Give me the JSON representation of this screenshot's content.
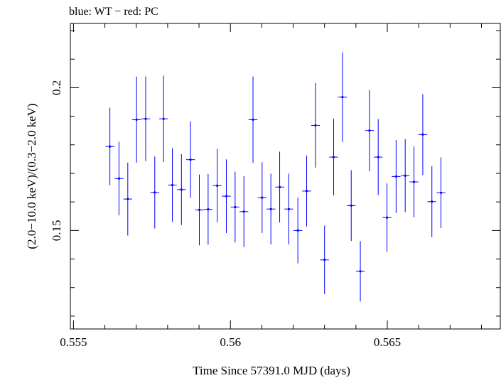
{
  "chart_data": {
    "type": "scatter",
    "title": "blue: WT − red: PC",
    "xlabel": "Time Since 57391.0 MJD (days)",
    "ylabel": "(2.0−10.0 keV)/(0.3−2.0 keV)",
    "xlim": [
      0.5549,
      0.5686
    ],
    "ylim": [
      0.1155,
      0.2225
    ],
    "xticks": [
      {
        "value": 0.555,
        "label": "0.555"
      },
      {
        "value": 0.56,
        "label": "0.56"
      },
      {
        "value": 0.565,
        "label": "0.565"
      }
    ],
    "yticks": [
      {
        "value": 0.15,
        "label": "0.15"
      },
      {
        "value": 0.2,
        "label": "0.2"
      }
    ],
    "grid": false,
    "series": [
      {
        "color": "#0000ff",
        "xerr": 0.00014,
        "points": [
          {
            "x": 0.55616,
            "y": 0.1794,
            "yerr": 0.0136
          },
          {
            "x": 0.55645,
            "y": 0.1682,
            "yerr": 0.0129
          },
          {
            "x": 0.55673,
            "y": 0.161,
            "yerr": 0.0128
          },
          {
            "x": 0.55701,
            "y": 0.1888,
            "yerr": 0.0151
          },
          {
            "x": 0.5573,
            "y": 0.1891,
            "yerr": 0.0148
          },
          {
            "x": 0.55759,
            "y": 0.1633,
            "yerr": 0.0126
          },
          {
            "x": 0.55787,
            "y": 0.1891,
            "yerr": 0.0151
          },
          {
            "x": 0.55815,
            "y": 0.1659,
            "yerr": 0.0129
          },
          {
            "x": 0.55844,
            "y": 0.1643,
            "yerr": 0.0124
          },
          {
            "x": 0.55873,
            "y": 0.1748,
            "yerr": 0.0134
          },
          {
            "x": 0.55901,
            "y": 0.1572,
            "yerr": 0.0124
          },
          {
            "x": 0.55929,
            "y": 0.1574,
            "yerr": 0.0124
          },
          {
            "x": 0.55958,
            "y": 0.1657,
            "yerr": 0.0129
          },
          {
            "x": 0.55987,
            "y": 0.162,
            "yerr": 0.0129
          },
          {
            "x": 0.56015,
            "y": 0.1582,
            "yerr": 0.0124
          },
          {
            "x": 0.56043,
            "y": 0.1566,
            "yerr": 0.0124
          },
          {
            "x": 0.56072,
            "y": 0.1888,
            "yerr": 0.0151
          },
          {
            "x": 0.56101,
            "y": 0.1615,
            "yerr": 0.0124
          },
          {
            "x": 0.56129,
            "y": 0.1575,
            "yerr": 0.0124
          },
          {
            "x": 0.56157,
            "y": 0.1652,
            "yerr": 0.0124
          },
          {
            "x": 0.56186,
            "y": 0.1575,
            "yerr": 0.0124
          },
          {
            "x": 0.56215,
            "y": 0.15,
            "yerr": 0.0115
          },
          {
            "x": 0.56243,
            "y": 0.1638,
            "yerr": 0.0124
          },
          {
            "x": 0.56271,
            "y": 0.1868,
            "yerr": 0.0148
          },
          {
            "x": 0.563,
            "y": 0.1397,
            "yerr": 0.012
          },
          {
            "x": 0.56329,
            "y": 0.1757,
            "yerr": 0.0134
          },
          {
            "x": 0.56357,
            "y": 0.1967,
            "yerr": 0.0157
          },
          {
            "x": 0.56385,
            "y": 0.1587,
            "yerr": 0.0124
          },
          {
            "x": 0.56414,
            "y": 0.1357,
            "yerr": 0.0106
          },
          {
            "x": 0.56443,
            "y": 0.185,
            "yerr": 0.0142
          },
          {
            "x": 0.56471,
            "y": 0.1757,
            "yerr": 0.0133
          },
          {
            "x": 0.56499,
            "y": 0.1545,
            "yerr": 0.012
          },
          {
            "x": 0.56528,
            "y": 0.1689,
            "yerr": 0.0128
          },
          {
            "x": 0.56557,
            "y": 0.1692,
            "yerr": 0.0128
          },
          {
            "x": 0.56585,
            "y": 0.167,
            "yerr": 0.0124
          },
          {
            "x": 0.56613,
            "y": 0.1836,
            "yerr": 0.0142
          },
          {
            "x": 0.56642,
            "y": 0.1601,
            "yerr": 0.0124
          },
          {
            "x": 0.56671,
            "y": 0.1632,
            "yerr": 0.0124
          }
        ]
      }
    ]
  }
}
